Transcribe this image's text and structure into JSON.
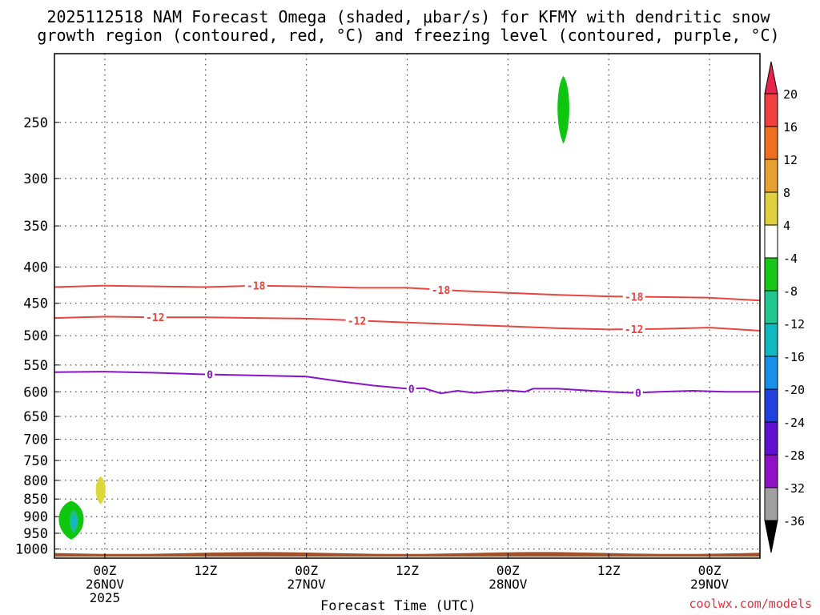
{
  "chart_data": {
    "type": "contour",
    "title_line1": "2025112518 NAM Forecast Omega (shaded, μbar/s) for KFMY with dendritic snow",
    "title_line2": "growth region (contoured, red, °C) and freezing level (contoured, purple, °C)",
    "xlabel": "Forecast Time (UTC)",
    "ylabel": "",
    "credit": "coolwx.com/models",
    "x_hours_range": [
      -6,
      78
    ],
    "y_pressure_range_hpa": [
      1030,
      200
    ],
    "y_ticks": [
      250,
      300,
      350,
      400,
      450,
      500,
      550,
      600,
      650,
      700,
      750,
      800,
      850,
      900,
      950,
      1000
    ],
    "x_ticks": [
      {
        "hour": 0,
        "line1": "00Z",
        "line2": "26NOV",
        "line3": "2025"
      },
      {
        "hour": 12,
        "line1": "12Z",
        "line2": "",
        "line3": ""
      },
      {
        "hour": 24,
        "line1": "00Z",
        "line2": "27NOV",
        "line3": ""
      },
      {
        "hour": 36,
        "line1": "12Z",
        "line2": "",
        "line3": ""
      },
      {
        "hour": 48,
        "line1": "00Z",
        "line2": "28NOV",
        "line3": ""
      },
      {
        "hour": 60,
        "line1": "12Z",
        "line2": "",
        "line3": ""
      },
      {
        "hour": 72,
        "line1": "00Z",
        "line2": "29NOV",
        "line3": ""
      }
    ],
    "contours": [
      {
        "name": "-18",
        "color": "#e8453c",
        "points": [
          [
            -6,
            427
          ],
          [
            0,
            425
          ],
          [
            6,
            426
          ],
          [
            12,
            427
          ],
          [
            18,
            425
          ],
          [
            24,
            426
          ],
          [
            30,
            428
          ],
          [
            36,
            428
          ],
          [
            42,
            432
          ],
          [
            48,
            435
          ],
          [
            54,
            438
          ],
          [
            60,
            440
          ],
          [
            66,
            441
          ],
          [
            72,
            442
          ],
          [
            78,
            446
          ]
        ],
        "labels": [
          {
            "hour": 18,
            "text": "-18"
          },
          {
            "hour": 40,
            "text": "-18"
          },
          {
            "hour": 63,
            "text": "-18"
          }
        ]
      },
      {
        "name": "-12",
        "color": "#e8453c",
        "points": [
          [
            -6,
            472
          ],
          [
            0,
            470
          ],
          [
            6,
            471
          ],
          [
            12,
            471
          ],
          [
            18,
            472
          ],
          [
            24,
            473
          ],
          [
            30,
            476
          ],
          [
            36,
            479
          ],
          [
            42,
            482
          ],
          [
            48,
            485
          ],
          [
            54,
            488
          ],
          [
            60,
            490
          ],
          [
            66,
            489
          ],
          [
            72,
            487
          ],
          [
            78,
            492
          ]
        ],
        "labels": [
          {
            "hour": 6,
            "text": "-12"
          },
          {
            "hour": 30,
            "text": "-12"
          },
          {
            "hour": 63,
            "text": "-12"
          }
        ]
      },
      {
        "name": "0",
        "color": "#8a14c8",
        "points": [
          [
            -6,
            563
          ],
          [
            0,
            562
          ],
          [
            6,
            564
          ],
          [
            12,
            567
          ],
          [
            18,
            569
          ],
          [
            24,
            571
          ],
          [
            28,
            580
          ],
          [
            32,
            588
          ],
          [
            36,
            594
          ],
          [
            38,
            593
          ],
          [
            40,
            603
          ],
          [
            42,
            598
          ],
          [
            44,
            602
          ],
          [
            46,
            599
          ],
          [
            48,
            597
          ],
          [
            50,
            600
          ],
          [
            51,
            594
          ],
          [
            54,
            594
          ],
          [
            56,
            596
          ],
          [
            60,
            600
          ],
          [
            63,
            602
          ],
          [
            66,
            600
          ],
          [
            70,
            598
          ],
          [
            74,
            600
          ],
          [
            78,
            600
          ]
        ],
        "labels": [
          {
            "hour": 12.5,
            "text": "0"
          },
          {
            "hour": 36.5,
            "text": "0"
          },
          {
            "hour": 63.5,
            "text": "0"
          }
        ]
      }
    ],
    "omega_blobs": [
      {
        "name": "green-upper",
        "color": "#0fc60f",
        "center_hour": 54.6,
        "pressure_top": 215,
        "pressure_bottom": 268
      },
      {
        "name": "green-lower",
        "color": "#0fc60f",
        "center_hour": -4.0,
        "pressure_top": 855,
        "pressure_bottom": 970
      },
      {
        "name": "teal-core",
        "color": "#1fbf8c",
        "center_hour": -3.7,
        "pressure_top": 880,
        "pressure_bottom": 950
      },
      {
        "name": "cyan-core",
        "color": "#12b8c8",
        "center_hour": -3.7,
        "pressure_top": 895,
        "pressure_bottom": 935
      },
      {
        "name": "yellow",
        "color": "#dcd83a",
        "center_hour": -0.5,
        "pressure_top": 790,
        "pressure_bottom": 865
      }
    ],
    "colorbar": {
      "tick_labels": [
        "20",
        "16",
        "12",
        "8",
        "4",
        "-4",
        "-8",
        "-12",
        "-16",
        "-20",
        "-24",
        "-28",
        "-32",
        "-36"
      ],
      "segments": [
        {
          "color": "#e8234a",
          "label": "> 20"
        },
        {
          "color": "#f04040"
        },
        {
          "color": "#f07020"
        },
        {
          "color": "#e8a030"
        },
        {
          "color": "#e0d040"
        },
        {
          "color": "#ffffff"
        },
        {
          "color": "#18c818"
        },
        {
          "color": "#20c890"
        },
        {
          "color": "#10b8c0"
        },
        {
          "color": "#1890e8"
        },
        {
          "color": "#2040e0"
        },
        {
          "color": "#6010d0"
        },
        {
          "color": "#9010c8"
        },
        {
          "color": "#a0a0a0"
        },
        {
          "color": "#000000",
          "label": "< -36"
        }
      ]
    },
    "ground_color": "#a0522d"
  }
}
